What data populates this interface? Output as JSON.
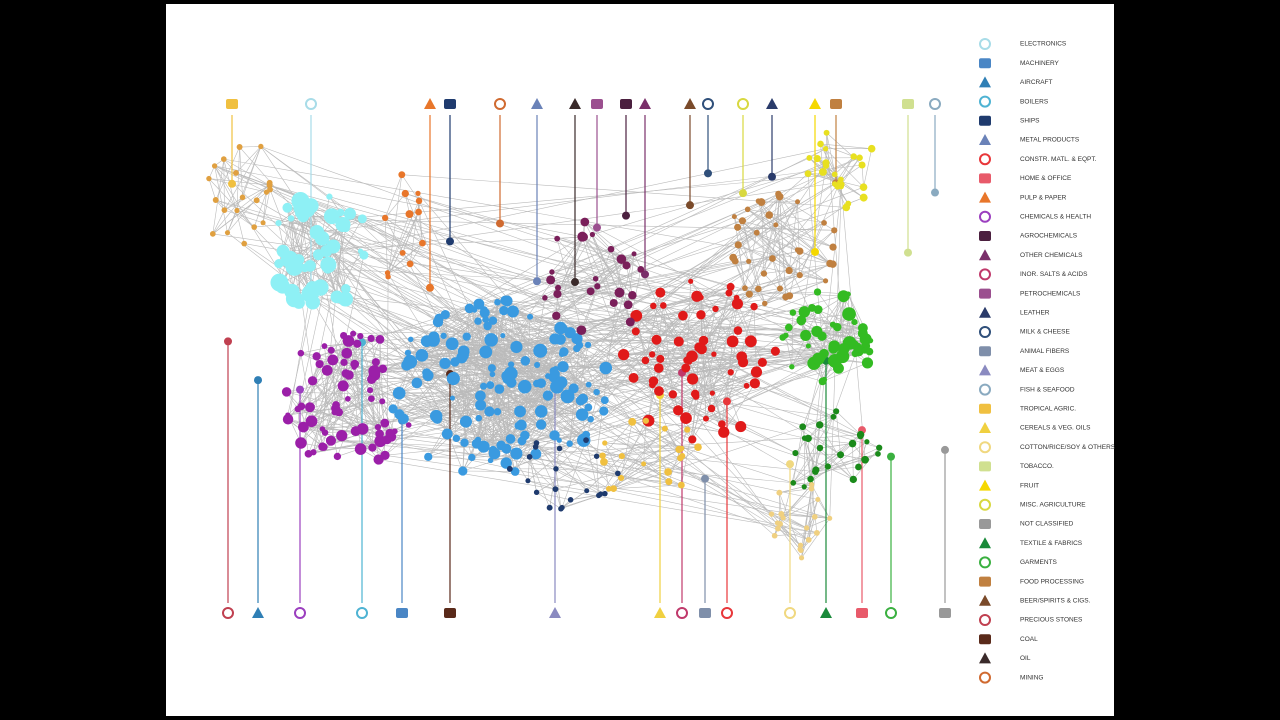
{
  "legend": {
    "items": [
      {
        "label": "ELECTRONICS",
        "color": "#a8dce8"
      },
      {
        "label": "MACHINERY",
        "color": "#4a86c5"
      },
      {
        "label": "AIRCRAFT",
        "color": "#2f7fb5"
      },
      {
        "label": "BOILERS",
        "color": "#4eb3d3"
      },
      {
        "label": "SHIPS",
        "color": "#1f3b6e"
      },
      {
        "label": "METAL PRODUCTS",
        "color": "#6a82b8"
      },
      {
        "label": "CONSTR. MATL. & EQPT.",
        "color": "#e8373a"
      },
      {
        "label": "HOME & OFFICE",
        "color": "#e85a6a"
      },
      {
        "label": "PULP & PAPER",
        "color": "#e8762a"
      },
      {
        "label": "CHEMICALS & HEALTH",
        "color": "#9b3fbf"
      },
      {
        "label": "AGROCHEMICALS",
        "color": "#4b1f3f"
      },
      {
        "label": "OTHER CHEMICALS",
        "color": "#7a2f6a"
      },
      {
        "label": "INOR. SALTS & ACIDS",
        "color": "#c0396b"
      },
      {
        "label": "PETROCHEMICALS",
        "color": "#9b4f8f"
      },
      {
        "label": "LEATHER",
        "color": "#2a3b6a"
      },
      {
        "label": "MILK & CHEESE",
        "color": "#2f4f7a"
      },
      {
        "label": "ANIMAL FIBERS",
        "color": "#7f8faa"
      },
      {
        "label": "MEAT & EGGS",
        "color": "#8a8ac0"
      },
      {
        "label": "FISH & SEAFOOD",
        "color": "#8aaac0"
      },
      {
        "label": "TROPICAL AGRIC.",
        "color": "#f0c040"
      },
      {
        "label": "CEREALS & VEG. OILS",
        "color": "#f0d040"
      },
      {
        "label": "COTTON/RICE/SOY & OTHERS",
        "color": "#f0d880"
      },
      {
        "label": "TOBACCO.",
        "color": "#d0e090"
      },
      {
        "label": "FRUIT",
        "color": "#f5d800"
      },
      {
        "label": "MISC. AGRICULTURE",
        "color": "#d8d840"
      },
      {
        "label": "NOT CLASSIFIED",
        "color": "#999999"
      },
      {
        "label": "TEXTILE & FABRICS",
        "color": "#1a8a3a"
      },
      {
        "label": "GARMENTS",
        "color": "#3ab040"
      },
      {
        "label": "FOOD PROCESSING",
        "color": "#c08040"
      },
      {
        "label": "BEER/SPIRITS & CIGS.",
        "color": "#7a4a2a"
      },
      {
        "label": "PRECIOUS STONES",
        "color": "#c04050"
      },
      {
        "label": "COAL",
        "color": "#5a2a1a"
      },
      {
        "label": "OIL",
        "color": "#3a2a2a"
      },
      {
        "label": "MINING",
        "color": "#d06a30"
      }
    ]
  }
}
